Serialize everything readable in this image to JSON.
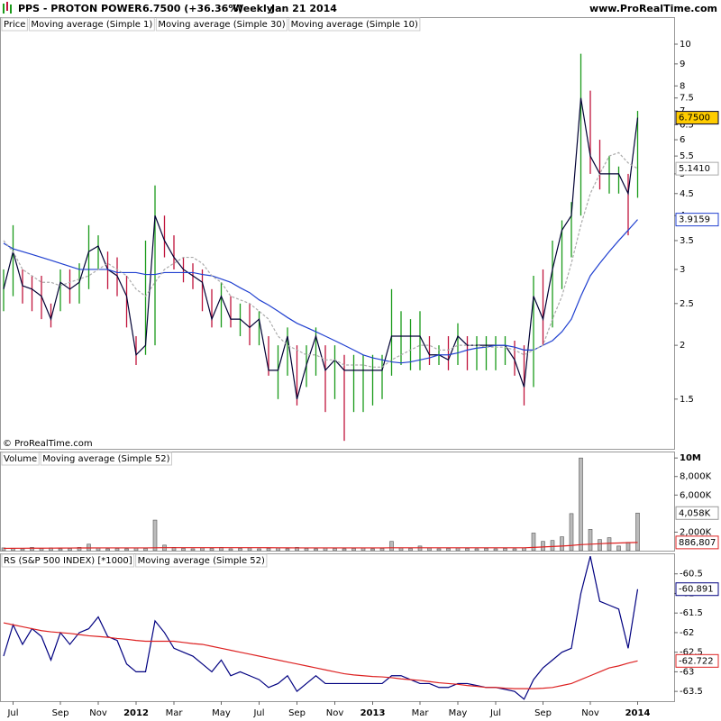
{
  "header": {
    "symbol": "PPS - PROTON POWER",
    "quote": "6.7500 (+36.36%)",
    "period": "Weekly",
    "date": "Jan 21 2014",
    "site": "www.ProRealTime.com",
    "copyright": "© ProRealTime.com"
  },
  "chart_data": [
    {
      "type": "ohlc",
      "log": true,
      "ylim": [
        1.15,
        11.5
      ],
      "yticks": [
        1.5,
        2,
        2.5,
        3,
        3.5,
        4,
        4.5,
        5,
        5.5,
        6,
        6.5,
        7,
        7.5,
        8,
        9,
        10
      ],
      "series": [
        {
          "name": "Price",
          "type": "ohlc",
          "color": "#000000",
          "up_color": "#1a9a1a",
          "down_color": "#c0143c",
          "high": [
            3.0,
            3.8,
            3.0,
            2.9,
            2.9,
            2.5,
            3.0,
            3.0,
            3.1,
            3.8,
            3.6,
            3.3,
            3.2,
            2.9,
            2.1,
            3.5,
            4.7,
            4.0,
            3.6,
            3.2,
            3.1,
            3.0,
            2.7,
            2.8,
            2.6,
            2.5,
            2.5,
            2.4,
            2.1,
            2.0,
            2.2,
            2.0,
            2.0,
            2.2,
            2.0,
            2.0,
            1.9,
            1.9,
            1.9,
            1.9,
            1.9,
            2.7,
            2.4,
            2.3,
            2.4,
            2.1,
            2.0,
            2.1,
            2.25,
            2.1,
            2.1,
            2.1,
            2.1,
            2.1,
            2.05,
            2.0,
            2.9,
            3.0,
            3.5,
            3.9,
            4.3,
            9.5,
            7.8,
            6.0,
            5.5,
            5.2,
            5.0,
            7.0
          ],
          "low": [
            2.4,
            2.6,
            2.5,
            2.4,
            2.3,
            2.2,
            2.4,
            2.5,
            2.5,
            2.7,
            3.0,
            2.7,
            2.6,
            2.2,
            1.8,
            1.9,
            2.0,
            3.2,
            3.0,
            2.8,
            2.7,
            2.4,
            2.2,
            2.2,
            2.2,
            2.1,
            2.0,
            2.0,
            1.7,
            1.5,
            1.7,
            1.45,
            1.6,
            1.7,
            1.4,
            1.5,
            1.2,
            1.4,
            1.4,
            1.45,
            1.5,
            1.7,
            1.8,
            1.75,
            1.75,
            1.8,
            1.8,
            1.75,
            1.8,
            1.75,
            1.75,
            1.75,
            1.75,
            1.8,
            1.7,
            1.45,
            1.6,
            2.0,
            2.2,
            2.7,
            3.2,
            4.0,
            5.0,
            4.6,
            4.5,
            4.5,
            3.6,
            4.4
          ]
        },
        {
          "name": "Moving average (Simple 1)",
          "type": "line",
          "color": "#000033",
          "marker_fill": "#ffcc00",
          "values": [
            2.7,
            3.3,
            2.75,
            2.7,
            2.6,
            2.3,
            2.8,
            2.7,
            2.8,
            3.3,
            3.4,
            3.0,
            2.9,
            2.6,
            1.9,
            2.0,
            4.0,
            3.5,
            3.2,
            3.0,
            2.9,
            2.8,
            2.3,
            2.6,
            2.3,
            2.3,
            2.2,
            2.3,
            1.75,
            1.75,
            2.1,
            1.5,
            1.8,
            2.1,
            1.75,
            1.85,
            1.75,
            1.75,
            1.75,
            1.75,
            1.75,
            2.1,
            2.1,
            2.1,
            2.1,
            1.9,
            1.9,
            1.85,
            2.1,
            2.0,
            2.0,
            2.0,
            2.0,
            2.0,
            1.85,
            1.6,
            2.6,
            2.3,
            3.0,
            3.7,
            4.0,
            7.5,
            5.5,
            5.0,
            5.0,
            5.0,
            4.5,
            6.75
          ],
          "marker": {
            "value": 6.75,
            "label": "6.7500"
          }
        },
        {
          "name": "Moving average (Simple 30)",
          "type": "line",
          "color": "#2040d0",
          "marker_fill": "#ffffff",
          "values": [
            3.45,
            3.35,
            3.3,
            3.25,
            3.2,
            3.15,
            3.1,
            3.05,
            3.0,
            3.0,
            3.0,
            3.0,
            2.95,
            2.95,
            2.95,
            2.92,
            2.92,
            2.95,
            2.95,
            2.95,
            2.95,
            2.92,
            2.9,
            2.85,
            2.8,
            2.72,
            2.65,
            2.55,
            2.48,
            2.4,
            2.32,
            2.25,
            2.2,
            2.15,
            2.1,
            2.05,
            2.0,
            1.95,
            1.9,
            1.87,
            1.85,
            1.83,
            1.82,
            1.83,
            1.85,
            1.87,
            1.9,
            1.9,
            1.92,
            1.95,
            1.97,
            1.98,
            2.0,
            2.0,
            1.98,
            1.95,
            1.95,
            2.0,
            2.05,
            2.15,
            2.3,
            2.6,
            2.9,
            3.1,
            3.3,
            3.5,
            3.7,
            3.9159
          ],
          "marker": {
            "value": 3.9159,
            "label": "3.9159"
          }
        },
        {
          "name": "Moving average (Simple 10)",
          "type": "line",
          "color": "#aaaaaa",
          "dash": true,
          "marker_fill": "#ffffff",
          "values": [
            3.5,
            3.3,
            3.0,
            2.9,
            2.8,
            2.8,
            2.75,
            2.8,
            2.85,
            2.9,
            3.0,
            3.1,
            3.0,
            2.9,
            2.7,
            2.6,
            2.8,
            3.0,
            3.1,
            3.2,
            3.2,
            3.1,
            2.9,
            2.8,
            2.6,
            2.55,
            2.5,
            2.4,
            2.3,
            2.1,
            2.0,
            1.95,
            1.9,
            1.9,
            1.85,
            1.85,
            1.8,
            1.8,
            1.8,
            1.78,
            1.78,
            1.85,
            1.9,
            1.95,
            2.0,
            2.0,
            1.95,
            1.95,
            2.0,
            2.0,
            2.0,
            1.98,
            1.98,
            1.98,
            1.95,
            1.9,
            1.95,
            2.0,
            2.3,
            2.6,
            3.1,
            3.8,
            4.5,
            5.0,
            5.5,
            5.6,
            5.3,
            5.141
          ],
          "marker": {
            "value": 5.141,
            "label": "5.1410"
          }
        }
      ]
    },
    {
      "type": "bar",
      "ylim": [
        0,
        10600000
      ],
      "yticks": [
        {
          "value": 2000000,
          "label": "2,000K"
        },
        {
          "value": 6000000,
          "label": "6,000K"
        },
        {
          "value": 8000000,
          "label": "8,000K"
        },
        {
          "value": 10000000,
          "label": "10M"
        }
      ],
      "series": [
        {
          "name": "Volume",
          "type": "bar",
          "color": "#bbbbbb",
          "marker_fill": "#ffffff",
          "values": [
            300000,
            250000,
            200000,
            350000,
            250000,
            300000,
            200000,
            250000,
            350000,
            700000,
            300000,
            200000,
            250000,
            200000,
            300000,
            250000,
            3300000,
            600000,
            350000,
            250000,
            200000,
            300000,
            250000,
            350000,
            200000,
            250000,
            300000,
            200000,
            250000,
            300000,
            200000,
            350000,
            250000,
            200000,
            300000,
            250000,
            200000,
            250000,
            300000,
            200000,
            250000,
            1000000,
            300000,
            250000,
            500000,
            300000,
            200000,
            250000,
            300000,
            250000,
            200000,
            250000,
            200000,
            250000,
            200000,
            300000,
            1900000,
            1000000,
            1100000,
            1500000,
            4000000,
            10000000,
            2300000,
            1200000,
            1400000,
            500000,
            900000,
            4058000
          ],
          "marker": {
            "value": 4058000,
            "label": "4,058K"
          }
        },
        {
          "name": "Moving average (Simple 52)",
          "type": "line",
          "color": "#dd2222",
          "marker_fill": "#ffffff",
          "values": [
            250000,
            255000,
            260000,
            265000,
            270000,
            275000,
            280000,
            285000,
            290000,
            295000,
            300000,
            300000,
            300000,
            300000,
            300000,
            300000,
            310000,
            320000,
            320000,
            320000,
            320000,
            320000,
            320000,
            320000,
            320000,
            320000,
            320000,
            320000,
            315000,
            310000,
            305000,
            300000,
            300000,
            300000,
            300000,
            300000,
            300000,
            300000,
            300000,
            300000,
            300000,
            310000,
            310000,
            310000,
            310000,
            310000,
            310000,
            310000,
            310000,
            310000,
            310000,
            310000,
            310000,
            310000,
            310000,
            310000,
            350000,
            400000,
            450000,
            500000,
            560000,
            650000,
            700000,
            750000,
            800000,
            830000,
            860000,
            886807
          ],
          "marker": {
            "value": 886807,
            "label": "886,807"
          }
        }
      ]
    },
    {
      "type": "line",
      "ylim": [
        -63.75,
        -60.0
      ],
      "yticks": [
        -63.5,
        -63,
        -62.5,
        -62,
        -61.5,
        -61,
        -60.5
      ],
      "categories": [
        null,
        "Jul",
        null,
        null,
        null,
        null,
        "Sep",
        null,
        null,
        null,
        "Nov",
        null,
        null,
        null,
        "2012",
        null,
        null,
        null,
        "Mar",
        null,
        null,
        null,
        null,
        "May",
        null,
        null,
        null,
        "Jul",
        null,
        null,
        null,
        "Sep",
        null,
        null,
        null,
        "Nov",
        null,
        null,
        null,
        "2013",
        null,
        null,
        null,
        null,
        "Mar",
        null,
        null,
        null,
        "May",
        null,
        null,
        null,
        "Jul",
        null,
        null,
        null,
        null,
        "Sep",
        null,
        null,
        null,
        null,
        "Nov",
        null,
        null,
        null,
        null,
        "2014"
      ],
      "series": [
        {
          "name": "RS (S&P 500 INDEX) [*1000]",
          "type": "line",
          "color": "#000080",
          "marker_fill": "#ffffff",
          "values": [
            -62.6,
            -61.8,
            -62.3,
            -61.9,
            -62.1,
            -62.7,
            -62.0,
            -62.3,
            -62.0,
            -61.9,
            -61.6,
            -62.1,
            -62.2,
            -62.8,
            -63.0,
            -63.0,
            -61.7,
            -62.0,
            -62.4,
            -62.5,
            -62.6,
            -62.8,
            -63.0,
            -62.7,
            -63.1,
            -63.0,
            -63.1,
            -63.2,
            -63.4,
            -63.3,
            -63.1,
            -63.5,
            -63.3,
            -63.1,
            -63.3,
            -63.3,
            -63.3,
            -63.3,
            -63.3,
            -63.3,
            -63.3,
            -63.1,
            -63.1,
            -63.2,
            -63.3,
            -63.3,
            -63.4,
            -63.4,
            -63.3,
            -63.3,
            -63.35,
            -63.4,
            -63.4,
            -63.45,
            -63.5,
            -63.7,
            -63.2,
            -62.9,
            -62.7,
            -62.5,
            -62.4,
            -61.0,
            -60.05,
            -61.2,
            -61.3,
            -61.4,
            -62.4,
            -60.891
          ],
          "marker": {
            "value": -60.891,
            "label": "-60.891"
          }
        },
        {
          "name": "Moving average (Simple 52)",
          "type": "line",
          "color": "#dd2222",
          "marker_fill": "#ffffff",
          "values": [
            -61.75,
            -61.8,
            -61.85,
            -61.9,
            -61.95,
            -61.98,
            -62.0,
            -62.02,
            -62.05,
            -62.08,
            -62.1,
            -62.12,
            -62.15,
            -62.17,
            -62.2,
            -62.22,
            -62.22,
            -62.22,
            -62.22,
            -62.25,
            -62.28,
            -62.3,
            -62.35,
            -62.4,
            -62.45,
            -62.5,
            -62.55,
            -62.6,
            -62.65,
            -62.7,
            -62.75,
            -62.8,
            -62.85,
            -62.9,
            -62.95,
            -63.0,
            -63.05,
            -63.08,
            -63.1,
            -63.12,
            -63.13,
            -63.15,
            -63.18,
            -63.2,
            -63.22,
            -63.25,
            -63.28,
            -63.3,
            -63.32,
            -63.35,
            -63.37,
            -63.4,
            -63.4,
            -63.42,
            -63.43,
            -63.43,
            -63.43,
            -63.42,
            -63.4,
            -63.35,
            -63.3,
            -63.2,
            -63.1,
            -63.0,
            -62.9,
            -62.85,
            -62.78,
            -62.722
          ],
          "marker": {
            "value": -62.722,
            "label": "-62.722"
          }
        }
      ]
    }
  ]
}
